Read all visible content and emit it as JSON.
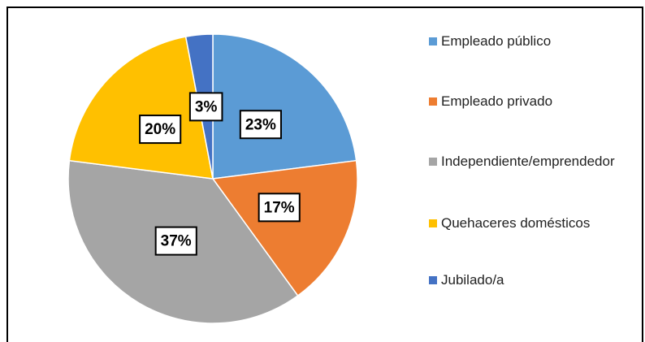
{
  "chart_data": {
    "type": "pie",
    "categories": [
      "Empleado público",
      "Empleado privado",
      "Independiente/emprendedor",
      "Quehaceres domésticos",
      "Jubilado/a"
    ],
    "values": [
      23,
      17,
      37,
      20,
      3
    ],
    "value_labels": [
      "23%",
      "17%",
      "37%",
      "20%",
      "3%"
    ],
    "colors": [
      "#5b9bd5",
      "#ed7d31",
      "#a5a5a5",
      "#ffc000",
      "#4472c4"
    ],
    "legend": "right"
  }
}
